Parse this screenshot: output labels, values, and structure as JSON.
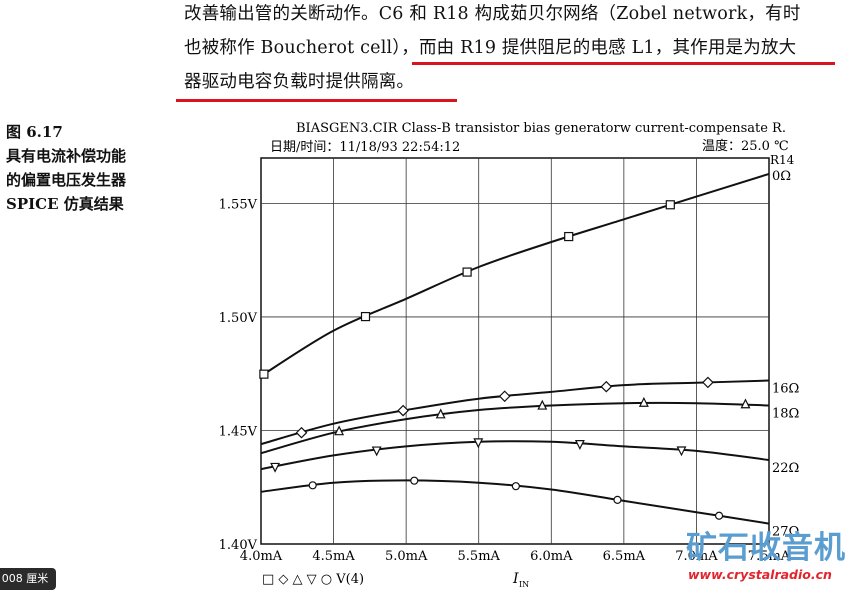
{
  "text": {
    "line1": "改善输出管的关断动作。C6 和 R18 构成茹贝尔网络（Zobel network，有时",
    "line2": "也被称作 Boucherot cell），而由 R19 提供阻尼的电感 L1，其作用是为放大",
    "line3": "器驱动电容负载时提供隔离。"
  },
  "caption": {
    "label": "图 6.17",
    "line1": "具有电流补偿功能",
    "line2": "的偏置电压发生器",
    "line3": "SPICE 仿真结果"
  },
  "annotation_color": "#d8141c",
  "zoom_badge": "008 厘米",
  "watermark": {
    "text": "矿石收音机",
    "url": "www.crystalradio.cn",
    "text_color": "#5a9dd0",
    "url_color": "#e2242c"
  },
  "chart_data": {
    "type": "line",
    "title": "BIASGEN3.CIR Class-B transistor bias generatorw current-compensate R.",
    "date_label": "日期/时间：11/18/93 22:54:12",
    "temp_label": "温度：25.0 ℃",
    "legend_label": "R14",
    "legend_text": "□ ◇ △ ▽ ○ V(4)",
    "xlabel": "I",
    "xlabel_sub": "IN",
    "xlim": [
      4.0,
      7.5
    ],
    "ylim": [
      1.4,
      1.57
    ],
    "x_ticks": [
      4.0,
      4.5,
      5.0,
      5.5,
      6.0,
      6.5,
      7.0,
      7.5
    ],
    "x_tick_labels": [
      "4.0mA",
      "4.5mA",
      "5.0mA",
      "5.5mA",
      "6.0mA",
      "6.5mA",
      "7.0mA",
      "7.5mA"
    ],
    "y_ticks": [
      1.4,
      1.45,
      1.5,
      1.55
    ],
    "y_tick_labels": [
      "1.40V",
      "1.45V",
      "1.50V",
      "1.55V"
    ],
    "grid": true,
    "series": [
      {
        "name": "0Ω",
        "marker": "square",
        "x": [
          4.0,
          4.5,
          5.0,
          5.5,
          6.0,
          6.5,
          7.0,
          7.5
        ],
        "y": [
          1.474,
          1.494,
          1.508,
          1.522,
          1.533,
          1.543,
          1.553,
          1.563
        ]
      },
      {
        "name": "16Ω",
        "marker": "diamond",
        "x": [
          4.0,
          4.5,
          5.0,
          5.5,
          6.0,
          6.5,
          7.0,
          7.5
        ],
        "y": [
          1.444,
          1.453,
          1.459,
          1.464,
          1.467,
          1.47,
          1.471,
          1.472
        ]
      },
      {
        "name": "18Ω",
        "marker": "triangle-up",
        "x": [
          4.0,
          4.5,
          5.0,
          5.5,
          6.0,
          6.5,
          7.0,
          7.5
        ],
        "y": [
          1.44,
          1.449,
          1.455,
          1.459,
          1.461,
          1.462,
          1.462,
          1.461
        ]
      },
      {
        "name": "22Ω",
        "marker": "triangle-down",
        "x": [
          4.0,
          4.5,
          5.0,
          5.5,
          6.0,
          6.5,
          7.0,
          7.5
        ],
        "y": [
          1.433,
          1.439,
          1.443,
          1.445,
          1.445,
          1.443,
          1.441,
          1.437
        ]
      },
      {
        "name": "27Ω",
        "marker": "circle",
        "x": [
          4.0,
          4.5,
          5.0,
          5.5,
          6.0,
          6.5,
          7.0,
          7.5
        ],
        "y": [
          1.423,
          1.427,
          1.428,
          1.427,
          1.424,
          1.419,
          1.414,
          1.409
        ]
      }
    ]
  }
}
